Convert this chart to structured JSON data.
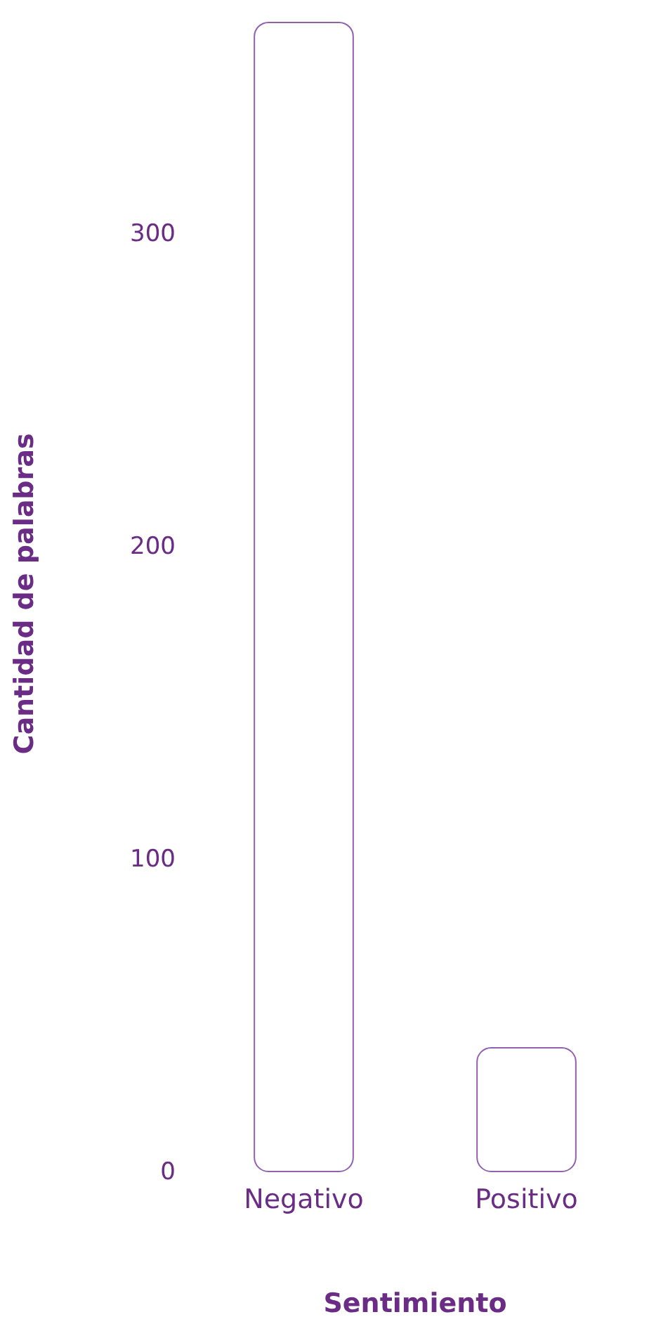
{
  "chart_data": {
    "type": "bar",
    "xlabel": "Sentimiento",
    "ylabel": "Cantidad de palabras",
    "categories": [
      "Negativo",
      "Positivo"
    ],
    "values": [
      368,
      40
    ],
    "color": "#9161ad",
    "ylim": [
      0,
      370
    ],
    "yticks": [
      0,
      100,
      200,
      300
    ],
    "grid": false
  }
}
